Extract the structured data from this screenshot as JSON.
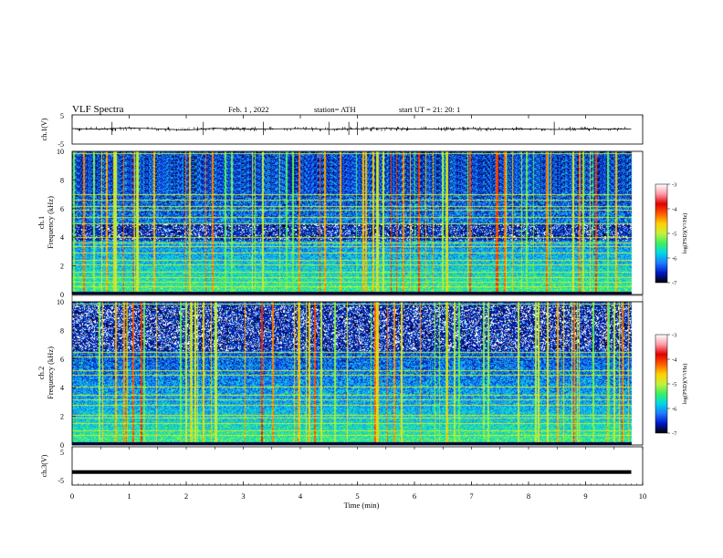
{
  "header": {
    "title": "VLF  Spectra",
    "date": "Feb. 1  , 2022",
    "station": "station= ATH",
    "start": "start  UT  =    21: 20: 1"
  },
  "colorbar": {
    "label": "log(PSD)(V²/Hz)",
    "ticks": [
      "-3",
      "-4",
      "-5",
      "-6",
      "-7"
    ],
    "colors": [
      "#000000",
      "#0018c8",
      "#1e7cff",
      "#00d8e6",
      "#3cf060",
      "#c8f03c",
      "#ffd000",
      "#ff5a00",
      "#e00000",
      "#ff9aa8",
      "#ffffff"
    ]
  },
  "chart_data": [
    {
      "type": "line",
      "name": "ch1-waveform",
      "ylabel": "ch.1(V)",
      "ylim": [
        -5,
        5
      ],
      "yticks": [
        "5",
        "-5"
      ],
      "x": [
        0,
        0.5,
        1,
        1.5,
        2,
        2.5,
        3,
        3.5,
        4,
        4.5,
        5,
        5.5,
        6,
        6.5,
        7,
        7.5,
        8,
        8.5,
        9,
        9.5,
        9.8
      ],
      "y": [
        0.3,
        0.1,
        0.6,
        0.2,
        -0.2,
        0.4,
        0.1,
        0.2,
        0.3,
        0.0,
        0.2,
        0.4,
        0.1,
        0.2,
        0.3,
        0.1,
        0.2,
        0.0,
        0.2,
        0.1,
        0.2
      ]
    },
    {
      "type": "heatmap",
      "name": "ch1-spectrogram",
      "ylabel": "ch.1\nFrequency (kHz)",
      "xlim": [
        0,
        10
      ],
      "ylim": [
        0,
        10
      ],
      "yticks": [
        "0",
        "2",
        "4",
        "6",
        "8",
        "10"
      ],
      "data_xmax": 9.8,
      "clim": [
        -7,
        -3
      ],
      "bands_khz": [
        0.6,
        0.9,
        1.2,
        1.6,
        2.1,
        2.4,
        2.9,
        3.4,
        3.6,
        4.0,
        5.0,
        5.4,
        5.9,
        6.2,
        6.6,
        7.0,
        9.9
      ],
      "quiet_band_khz": [
        3.8,
        5.0
      ]
    },
    {
      "type": "heatmap",
      "name": "ch2-spectrogram",
      "ylabel": "ch.2\nFrequency (kHz)",
      "xlim": [
        0,
        10
      ],
      "ylim": [
        0,
        10
      ],
      "yticks": [
        "0",
        "2",
        "4",
        "6",
        "8",
        "10"
      ],
      "data_xmax": 9.8,
      "clim": [
        -7,
        -3
      ],
      "bands_khz": [
        0.7,
        1.0,
        1.5,
        1.9,
        2.1,
        2.8,
        3.2,
        3.5,
        4.1,
        4.9,
        5.2,
        6.2,
        6.5,
        9.9
      ],
      "quiet_band_khz": [
        6.6,
        9.8
      ]
    },
    {
      "type": "line",
      "name": "ch3-waveform",
      "ylabel": "ch.3(V)",
      "xlabel": "Time  (min)",
      "ylim": [
        -5,
        5
      ],
      "yticks": [
        "5",
        "-5"
      ],
      "xticks": [
        "0",
        "1",
        "2",
        "3",
        "4",
        "5",
        "6",
        "7",
        "8",
        "9",
        "10"
      ],
      "x": [
        0,
        9.8
      ],
      "y": [
        -1.6,
        -1.6
      ]
    }
  ]
}
